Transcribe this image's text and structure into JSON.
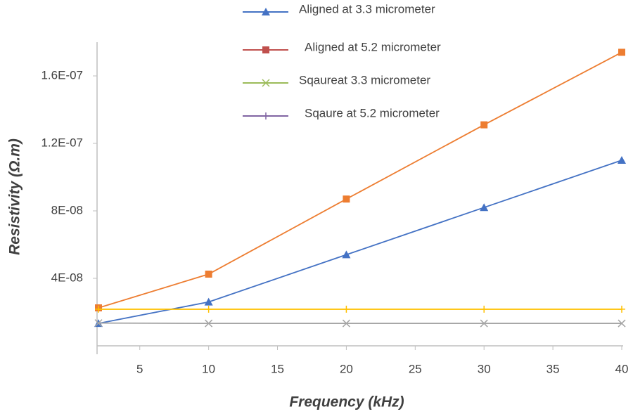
{
  "chart_data": {
    "type": "line",
    "x_label": "Frequency (kHz)",
    "y_label": "Resistivity (Ω.m)",
    "x": [
      2,
      10,
      20,
      30,
      40
    ],
    "series": [
      {
        "name": "Aligned at 3.3 micrometer",
        "color": "#4472c4",
        "legend_color": "#4472c4",
        "marker": "triangle",
        "values": [
          1.33e-08,
          2.6e-08,
          5.4e-08,
          8.2e-08,
          1.1e-07
        ]
      },
      {
        "name": "Aligned at 5.2 micrometer",
        "color": "#ed7d31",
        "legend_color": "#c0504d",
        "marker": "square",
        "values": [
          2.25e-08,
          4.25e-08,
          8.7e-08,
          1.31e-07,
          1.74e-07
        ]
      },
      {
        "name": "Sqaureat 3.3 micrometer",
        "color": "#a5a5a5",
        "legend_color": "#9bbb59",
        "marker": "x",
        "values": [
          1.35e-08,
          1.33e-08,
          1.33e-08,
          1.33e-08,
          1.33e-08
        ]
      },
      {
        "name": "Sqaure at 5.2 micrometer",
        "color": "#ffc000",
        "legend_color": "#8064a2",
        "marker": "plus",
        "values": [
          2.17e-08,
          2.17e-08,
          2.17e-08,
          2.17e-08,
          2.17e-08
        ]
      }
    ],
    "xlim": [
      2,
      40
    ],
    "xticks": [
      5,
      10,
      15,
      20,
      25,
      30,
      35,
      40
    ],
    "ylim": [
      0,
      1.8e-07
    ],
    "yticks": [
      {
        "value": 4e-08,
        "label": "4E-08"
      },
      {
        "value": 8e-08,
        "label": "8E-08"
      },
      {
        "value": 1.2e-07,
        "label": "1.2E-07"
      },
      {
        "value": 1.6e-07,
        "label": "1.6E-07"
      }
    ],
    "grid": false
  }
}
